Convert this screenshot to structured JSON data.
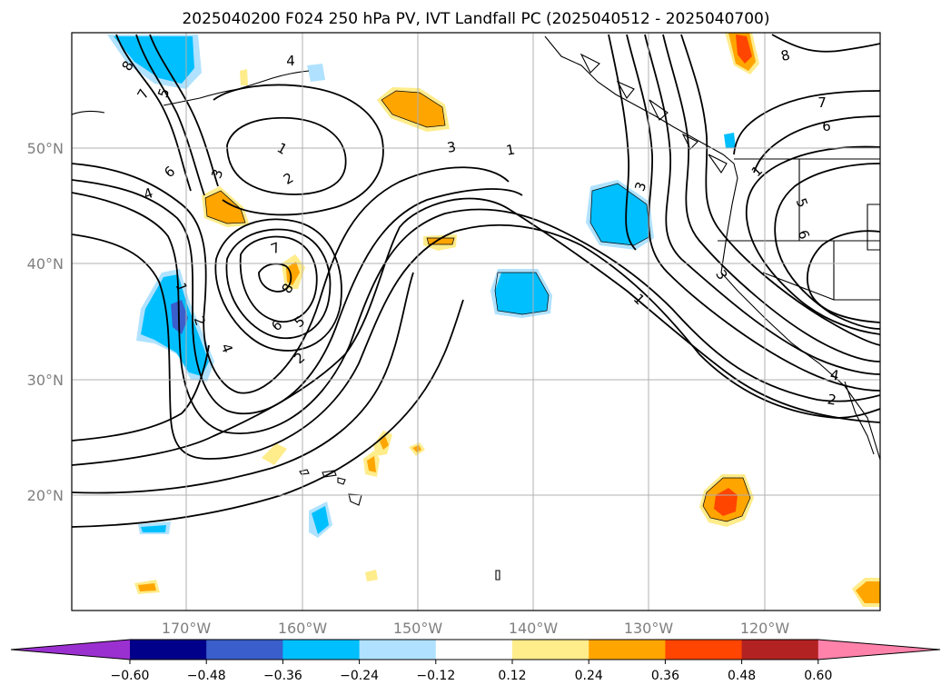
{
  "title": "2025040200 F024 250 hPa PV, IVT Landfall PC (2025040512 - 2025040700)",
  "map": {
    "lon_range": [
      -180,
      -110
    ],
    "lat_range": [
      10,
      60
    ],
    "lon_ticks": [
      "170°W",
      "160°W",
      "150°W",
      "140°W",
      "130°W",
      "120°W"
    ],
    "lat_ticks": [
      "20°N",
      "30°N",
      "40°N",
      "50°N"
    ],
    "grid": true
  },
  "colorbar": {
    "orientation": "horizontal",
    "extend": "both",
    "ticks": [
      "−0.60",
      "−0.48",
      "−0.36",
      "−0.24",
      "−0.12",
      "0.12",
      "0.24",
      "0.36",
      "0.48",
      "0.60"
    ],
    "colors": [
      "#9b30d0",
      "#00008b",
      "#3a5fcd",
      "#00bfff",
      "#b0e2ff",
      "#ffffff",
      "#ffec8b",
      "#ffa500",
      "#ff4500",
      "#b22222",
      "#ff82ab"
    ]
  },
  "contour_labels": [
    {
      "text": "8"
    },
    {
      "text": "7"
    },
    {
      "text": "5"
    },
    {
      "text": "6"
    },
    {
      "text": "4"
    },
    {
      "text": "3"
    },
    {
      "text": "2"
    },
    {
      "text": "1"
    },
    {
      "text": "4"
    },
    {
      "text": "3"
    },
    {
      "text": "1"
    },
    {
      "text": "7"
    },
    {
      "text": "8"
    },
    {
      "text": "6"
    },
    {
      "text": "5"
    },
    {
      "text": "2"
    },
    {
      "text": "1"
    },
    {
      "text": "2"
    },
    {
      "text": "4"
    },
    {
      "text": "3"
    },
    {
      "text": "1"
    },
    {
      "text": "8"
    },
    {
      "text": "7"
    },
    {
      "text": "6"
    },
    {
      "text": "1"
    },
    {
      "text": "5"
    },
    {
      "text": "6"
    },
    {
      "text": "3"
    },
    {
      "text": "4"
    },
    {
      "text": "2"
    }
  ]
}
